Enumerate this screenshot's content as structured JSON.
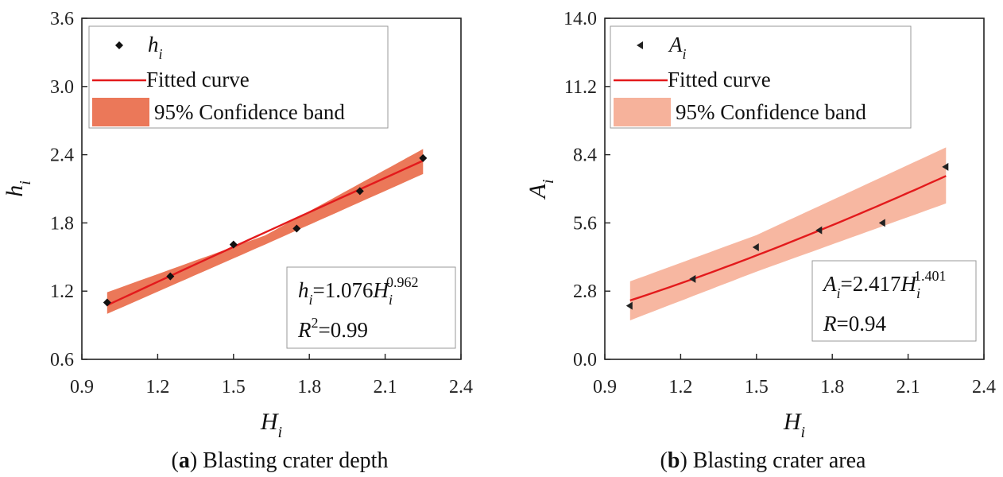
{
  "chart_data": [
    {
      "type": "scatter",
      "title": "Blasting crater depth",
      "caption_tag": "a",
      "xlabel": "H",
      "xlabel_sub": "i",
      "ylabel": "h",
      "ylabel_sub": "i",
      "xlim": [
        0.9,
        2.4
      ],
      "ylim": [
        0.6,
        3.6
      ],
      "xticks": [
        "0.9",
        "1.2",
        "1.5",
        "1.8",
        "2.1",
        "2.4"
      ],
      "yticks": [
        "0.6",
        "1.2",
        "1.8",
        "2.4",
        "3.0",
        "3.6"
      ],
      "points": {
        "name": "h",
        "name_sub": "i",
        "marker": "diamond",
        "x": [
          1.0,
          1.25,
          1.5,
          1.75,
          2.0,
          2.25
        ],
        "y": [
          1.1,
          1.33,
          1.61,
          1.75,
          2.08,
          2.37
        ]
      },
      "fit": {
        "name": "Fitted curve",
        "a": 1.076,
        "b": 0.962,
        "x_range": [
          1.0,
          2.25
        ],
        "color": "#e31a1c"
      },
      "band": {
        "name": "95% Confidence band",
        "lower": [
          1.0,
          1.61,
          2.23
        ],
        "upper": [
          1.19,
          1.69,
          2.45
        ],
        "x": [
          1.0,
          1.625,
          2.25
        ],
        "color": "#e8603c"
      },
      "equation": {
        "lhs": "h",
        "lhs_sub": "i",
        "eq": "=1.076",
        "var": "H",
        "var_sub": "i",
        "exp": "0.962"
      },
      "r_label": {
        "sym": "R",
        "sup": "2",
        "value": "=0.99"
      },
      "legend": [
        "h",
        "Fitted curve",
        "95% Confidence band"
      ]
    },
    {
      "type": "scatter",
      "title": "Blasting crater area",
      "caption_tag": "b",
      "xlabel": "H",
      "xlabel_sub": "i",
      "ylabel": "A",
      "ylabel_sub": "i",
      "xlim": [
        0.9,
        2.4
      ],
      "ylim": [
        0.0,
        14.0
      ],
      "xticks": [
        "0.9",
        "1.2",
        "1.5",
        "1.8",
        "2.1",
        "2.4"
      ],
      "yticks": [
        "0.0",
        "2.8",
        "5.6",
        "8.4",
        "11.2",
        "14.0"
      ],
      "points": {
        "name": "A",
        "name_sub": "i",
        "marker": "triangle-left",
        "x": [
          1.0,
          1.25,
          1.5,
          1.75,
          2.0,
          2.25
        ],
        "y": [
          2.2,
          3.3,
          4.6,
          5.3,
          5.6,
          7.9
        ]
      },
      "fit": {
        "name": "Fitted curve",
        "a": 2.417,
        "b": 1.401,
        "x_range": [
          1.0,
          2.25
        ],
        "color": "#e31a1c"
      },
      "band": {
        "name": "95% Confidence band",
        "lower": [
          1.6,
          3.6,
          6.4
        ],
        "upper": [
          3.2,
          5.1,
          8.7
        ],
        "x": [
          1.0,
          1.5,
          2.25
        ],
        "color": "#f5a58a"
      },
      "equation": {
        "lhs": "A",
        "lhs_sub": "i",
        "eq": "=2.417",
        "var": "H",
        "var_sub": "i",
        "exp": "1.401"
      },
      "r_label": {
        "sym": "R",
        "sup": "",
        "value": "=0.94"
      },
      "legend": [
        "A",
        "Fitted curve",
        "95% Confidence band"
      ]
    }
  ]
}
